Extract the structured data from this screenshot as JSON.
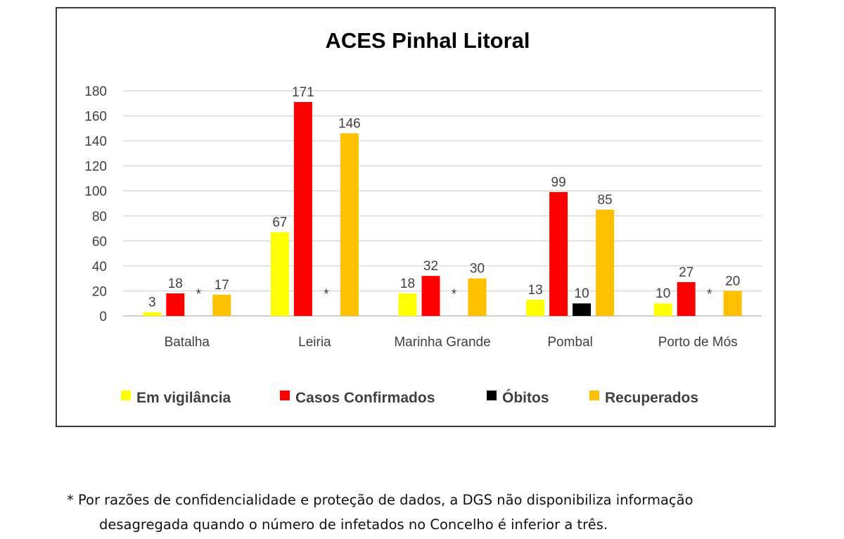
{
  "chart_data": {
    "type": "bar",
    "title": "ACES Pinhal Litoral",
    "categories": [
      "Batalha",
      "Leiria",
      "Marinha Grande",
      "Pombal",
      "Porto de Mós"
    ],
    "series": [
      {
        "name": "Em vigilância",
        "color": "#ffff00",
        "values": [
          3,
          67,
          18,
          13,
          10
        ]
      },
      {
        "name": "Casos Confirmados",
        "color": "#ff0000",
        "values": [
          18,
          171,
          32,
          99,
          27
        ]
      },
      {
        "name": "Óbitos",
        "color": "#000000",
        "values": [
          null,
          null,
          null,
          10,
          null
        ]
      },
      {
        "name": "Recuperados",
        "color": "#ffc000",
        "values": [
          17,
          146,
          30,
          85,
          20
        ]
      }
    ],
    "missing_marker": "*",
    "ylim": [
      0,
      180
    ],
    "yticks": [
      0,
      20,
      40,
      60,
      80,
      100,
      120,
      140,
      160,
      180
    ],
    "grid": true,
    "legend_position": "bottom"
  },
  "footnote": {
    "line1": "* Por razões de confidencialidade e proteção de dados, a DGS não disponibiliza informação",
    "line2": "desagregada quando o número de infetados no Concelho é inferior a três."
  }
}
